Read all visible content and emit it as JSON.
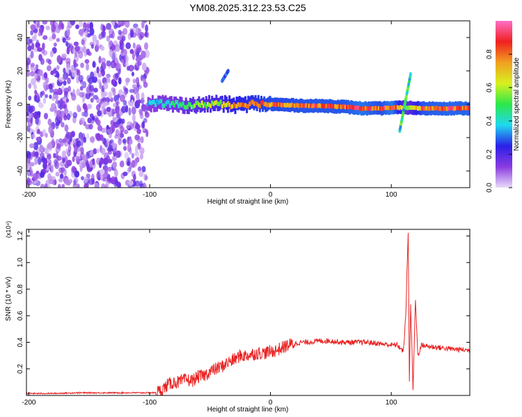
{
  "title": "YM08.2025.312.23.53.C25",
  "chart_data": [
    {
      "type": "heatmap",
      "xlabel": "Height of straight line (km)",
      "ylabel": "Frequency (Hz)",
      "xlim": [
        -202,
        165
      ],
      "ylim": [
        -50,
        50
      ],
      "xticks": [
        -200,
        -100,
        0,
        100
      ],
      "yticks": [
        -40,
        -20,
        0,
        20,
        40
      ],
      "colorbar": {
        "label": "Normalized spectral amplitude",
        "range": [
          0,
          1
        ],
        "ticks": [
          "0.0",
          "0.2",
          "0.4",
          "0.6",
          "0.8"
        ],
        "colors": [
          "#e8dcf8",
          "#8a3be0",
          "#2a20e8",
          "#20d8f0",
          "#2ce84a",
          "#d8f020",
          "#f0a020",
          "#f02020",
          "#ff70c8"
        ]
      },
      "noise_region": {
        "x": [
          -202,
          -102
        ],
        "y": [
          -50,
          50
        ],
        "level": 0.15
      },
      "ridge": [
        {
          "x": -102,
          "y": 0.5,
          "a": 0.35
        },
        {
          "x": -90,
          "y": 0.5,
          "a": 0.4
        },
        {
          "x": -75,
          "y": -0.5,
          "a": 0.45
        },
        {
          "x": -60,
          "y": -0.5,
          "a": 0.55
        },
        {
          "x": -45,
          "y": 0.5,
          "a": 0.6
        },
        {
          "x": -30,
          "y": -0.5,
          "a": 0.72
        },
        {
          "x": -15,
          "y": 0.5,
          "a": 0.75
        },
        {
          "x": 0,
          "y": 0,
          "a": 0.8
        },
        {
          "x": 15,
          "y": -0.5,
          "a": 0.8
        },
        {
          "x": 30,
          "y": -1,
          "a": 0.82
        },
        {
          "x": 45,
          "y": -1,
          "a": 0.82
        },
        {
          "x": 60,
          "y": -1.5,
          "a": 0.82
        },
        {
          "x": 75,
          "y": -2.5,
          "a": 0.88
        },
        {
          "x": 90,
          "y": -2.5,
          "a": 0.8
        },
        {
          "x": 100,
          "y": -2,
          "a": 0.9
        },
        {
          "x": 112,
          "y": -2,
          "a": 0.5
        },
        {
          "x": 125,
          "y": -2.5,
          "a": 0.82
        },
        {
          "x": 145,
          "y": -2.5,
          "a": 0.85
        },
        {
          "x": 165,
          "y": -2.5,
          "a": 0.84
        }
      ],
      "annotations": [
        {
          "x": [
            107,
            116
          ],
          "y": [
            -16,
            18
          ],
          "level": 0.5
        },
        {
          "x": [
            -40,
            -35
          ],
          "y": [
            14,
            20
          ],
          "level": 0.3
        }
      ]
    },
    {
      "type": "line",
      "xlabel": "Height of straight line (km)",
      "ylabel": "SNR (10 * v/v)",
      "y_multiplier": "(x10⁴)",
      "xlim": [
        -202,
        165
      ],
      "ylim": [
        0,
        1.25
      ],
      "xticks": [
        -200,
        -100,
        0,
        100
      ],
      "yticks": [
        0.2,
        0.4,
        0.6,
        0.8,
        1.0,
        1.2
      ],
      "color": "#e82020",
      "series": [
        {
          "x": [
            -202,
            -180,
            -160,
            -140,
            -120,
            -100,
            -95,
            -90,
            -85,
            -80,
            -75,
            -70,
            -65,
            -60,
            -55,
            -50,
            -45,
            -40,
            -35,
            -30,
            -25,
            -20,
            -15,
            -10,
            -5,
            0,
            5,
            10,
            15,
            20,
            25,
            30,
            40,
            50,
            60,
            70,
            80,
            90,
            100,
            105,
            110,
            112,
            114,
            115,
            116,
            118,
            120,
            122,
            125,
            130,
            140,
            150,
            165
          ],
          "y": [
            0.015,
            0.015,
            0.02,
            0.02,
            0.02,
            0.02,
            0.02,
            0.04,
            0.08,
            0.1,
            0.1,
            0.12,
            0.11,
            0.14,
            0.15,
            0.18,
            0.2,
            0.22,
            0.25,
            0.27,
            0.3,
            0.3,
            0.31,
            0.32,
            0.32,
            0.33,
            0.34,
            0.36,
            0.38,
            0.39,
            0.4,
            0.4,
            0.41,
            0.41,
            0.4,
            0.4,
            0.4,
            0.39,
            0.38,
            0.38,
            0.33,
            0.6,
            1.24,
            0.1,
            0.7,
            0.05,
            0.72,
            0.3,
            0.38,
            0.37,
            0.36,
            0.35,
            0.34
          ]
        }
      ]
    }
  ]
}
